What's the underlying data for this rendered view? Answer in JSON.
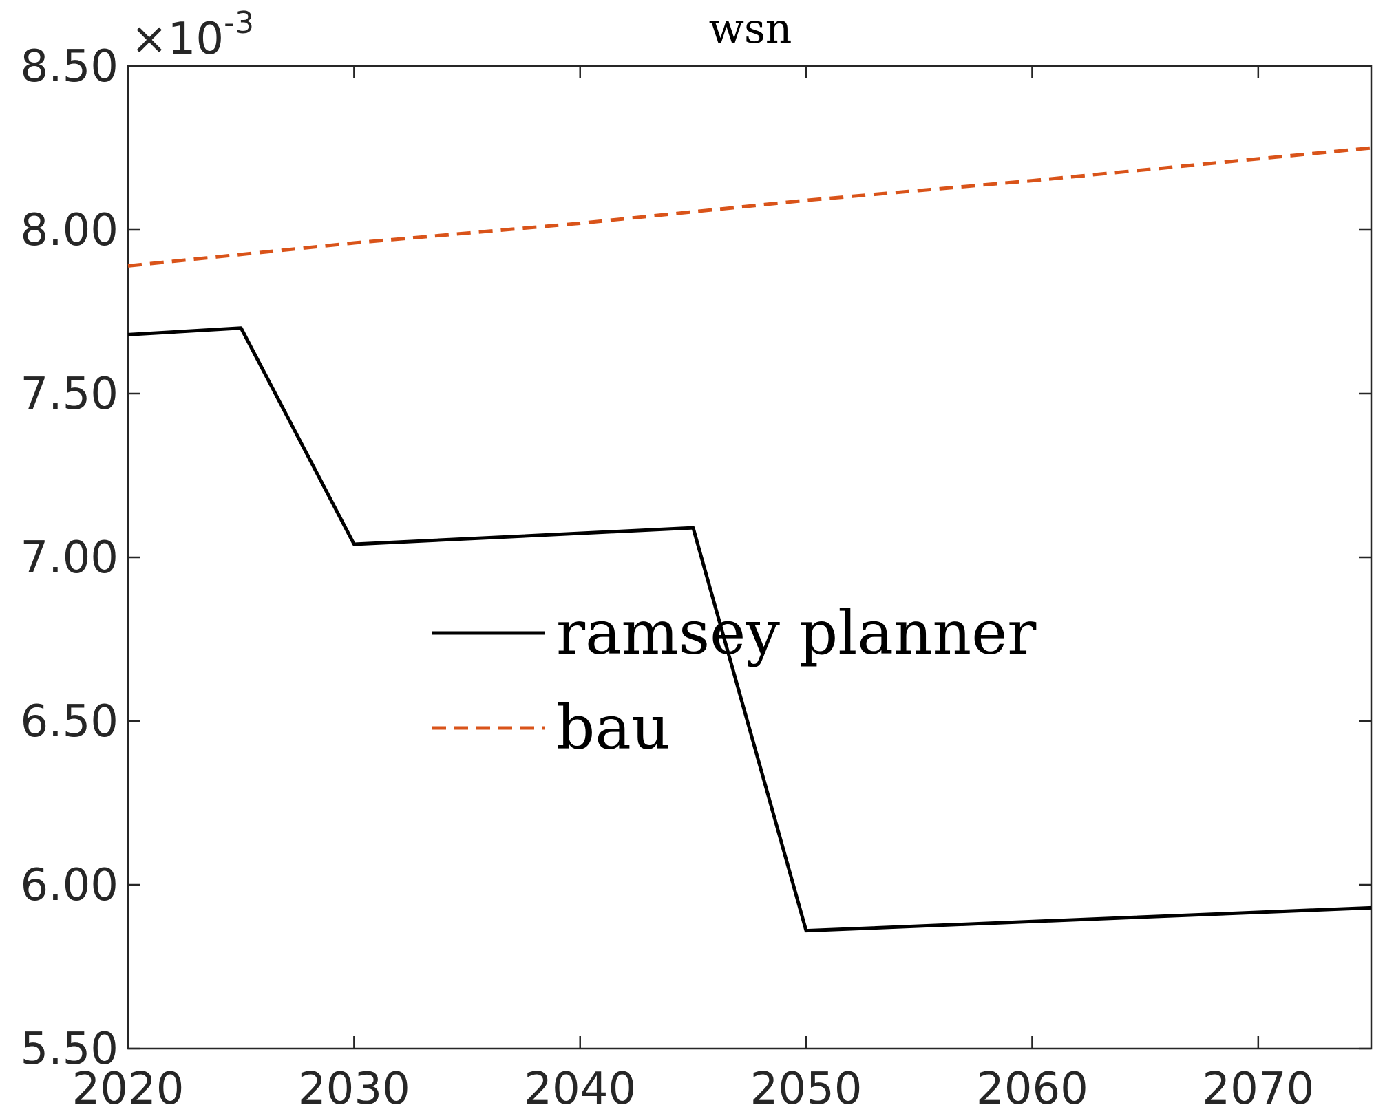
{
  "chart_data": {
    "type": "line",
    "title": "wsn",
    "xlabel": "",
    "ylabel": "",
    "y_exponent_base": "×10",
    "y_exponent_power": "-3",
    "xlim": [
      2020,
      2075
    ],
    "ylim": [
      5.5,
      8.5
    ],
    "xticks": [
      2020,
      2030,
      2040,
      2050,
      2060,
      2070
    ],
    "xtick_labels": [
      "2020",
      "2030",
      "2040",
      "2050",
      "2060",
      "2070"
    ],
    "yticks": [
      5.5,
      6.0,
      6.5,
      7.0,
      7.5,
      8.0,
      8.5
    ],
    "ytick_labels": [
      "5.50",
      "6.00",
      "6.50",
      "7.00",
      "7.50",
      "8.00",
      "8.50"
    ],
    "grid": false,
    "legend_position": "center",
    "series": [
      {
        "name": "ramsey planner",
        "color": "#000000",
        "dash": "solid",
        "x": [
          2020,
          2025,
          2030,
          2045,
          2050,
          2075
        ],
        "y": [
          7.68,
          7.7,
          7.04,
          7.09,
          5.86,
          5.93
        ]
      },
      {
        "name": "bau",
        "color": "#D95319",
        "dash": "dashed",
        "x": [
          2020,
          2030,
          2040,
          2050,
          2060,
          2075
        ],
        "y": [
          7.89,
          7.96,
          8.02,
          8.09,
          8.15,
          8.25
        ]
      }
    ]
  }
}
